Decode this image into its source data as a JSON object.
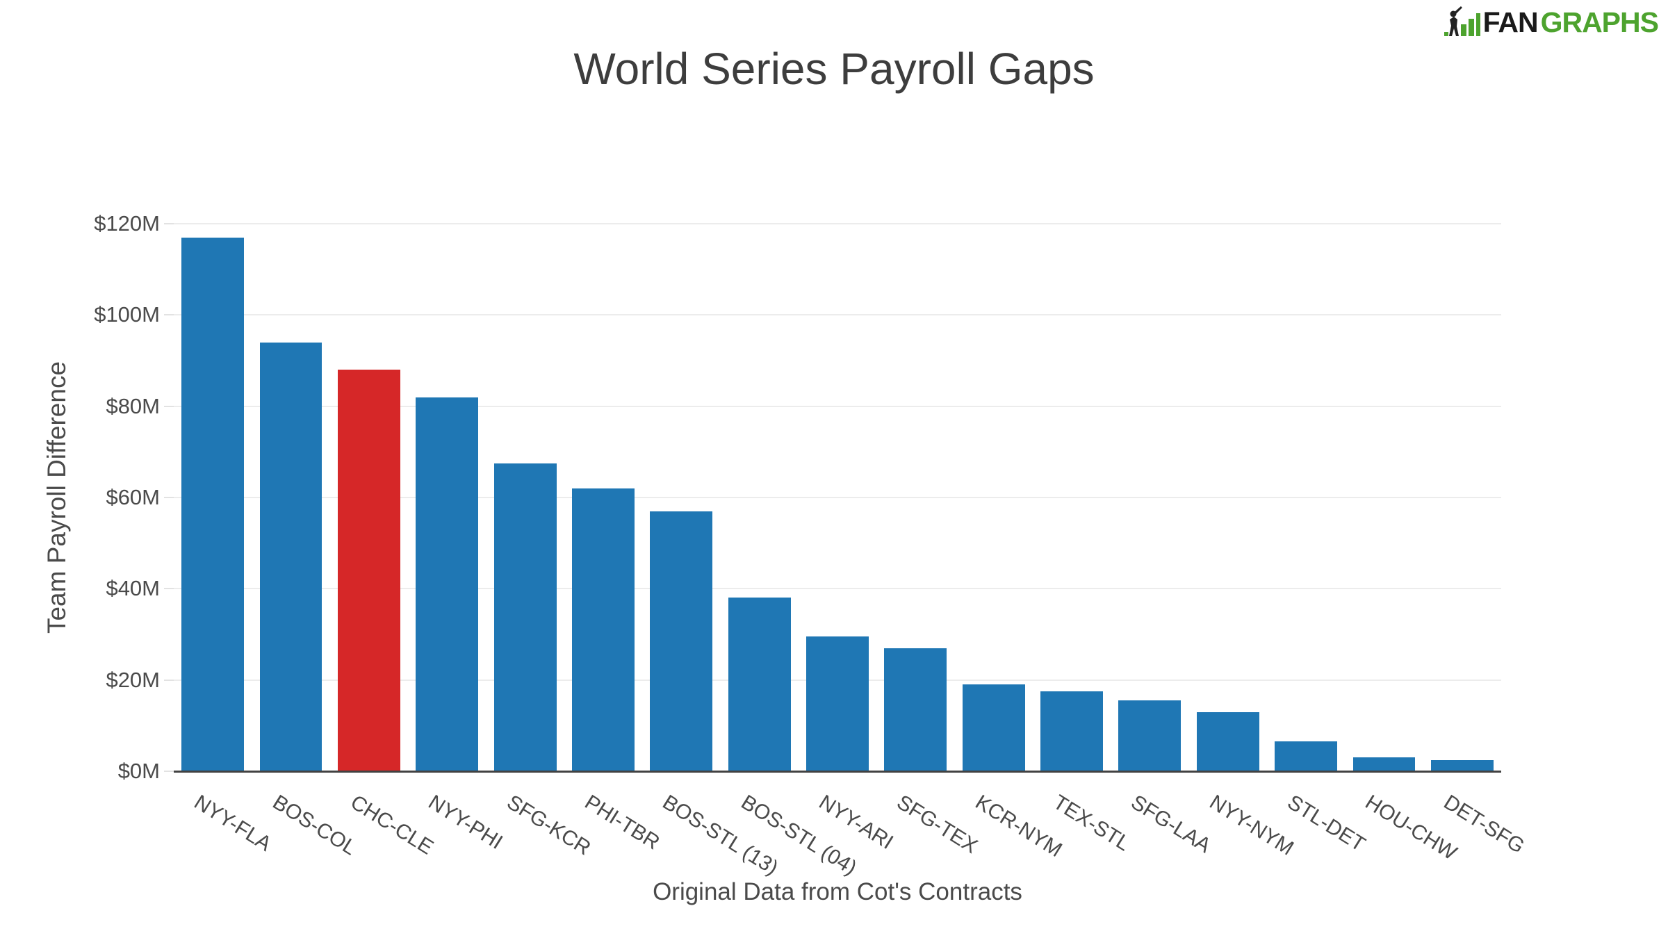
{
  "logo": {
    "fan": "FAN",
    "graphs": "GRAPHS",
    "green": "#4da32e",
    "dark": "#1a1a1a"
  },
  "chart_data": {
    "type": "bar",
    "title": "World Series Payroll Gaps",
    "xlabel": "Original Data from Cot's Contracts",
    "ylabel": "Team Payroll Difference",
    "categories": [
      "NYY-FLA",
      "BOS-COL",
      "CHC-CLE",
      "NYY-PHI",
      "SFG-KCR",
      "PHI-TBR",
      "BOS-STL (13)",
      "BOS-STL (04)",
      "NYY-ARI",
      "SFG-TEX",
      "KCR-NYM",
      "TEX-STL",
      "SFG-LAA",
      "NYY-NYM",
      "STL-DET",
      "HOU-CHW",
      "DET-SFG"
    ],
    "values": [
      117,
      94,
      88,
      82,
      67.5,
      62,
      57,
      38,
      29.5,
      27,
      19,
      17.5,
      15.5,
      13,
      6.5,
      3,
      2.5
    ],
    "values_unit": "$M",
    "highlight_index": 2,
    "bar_color": "#1f77b4",
    "highlight_color": "#d62728",
    "ylim": [
      0,
      120
    ],
    "ytick_step": 20,
    "yticks": [
      "$0M",
      "$20M",
      "$40M",
      "$60M",
      "$80M",
      "$100M",
      "$120M"
    ],
    "grid": true,
    "gridline_color": "#ececec",
    "axis_line_color": "#424242",
    "text_color": "#4a4a4a",
    "xtick_angle_deg": 32,
    "legend": "none"
  }
}
